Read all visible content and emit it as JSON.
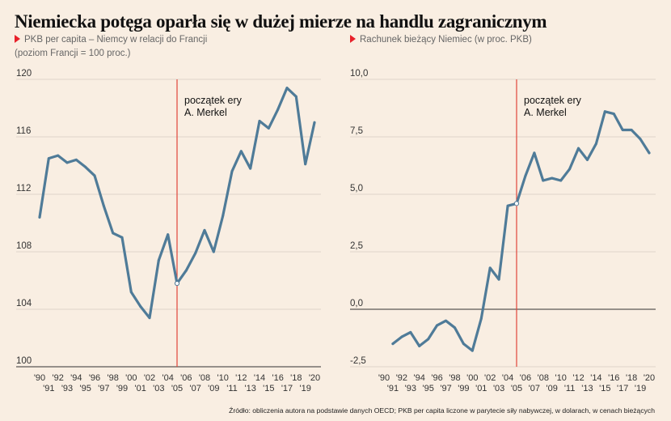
{
  "header": {
    "title": "Niemiecka potęga oparła się w dużej mierze na handlu zagranicznym",
    "left_subtitle_line1": "PKB per capita – Niemcy w relacji do Francji",
    "left_subtitle_line2": "(poziom Francji = 100 proc.)",
    "right_subtitle": "Rachunek bieżący Niemiec (w proc. PKB)"
  },
  "source": "Źródło: obliczenia autora na podstawie danych OECD; PKB per capita liczone w parytecie siły nabywczej, w dolarach, w cenach bieżących",
  "colors": {
    "line": "#4f7b98",
    "marker": "#e0453a",
    "background": "#f9eee2",
    "grid": "#d4cbc0"
  },
  "chart_data": [
    {
      "type": "line",
      "title": "PKB per capita – Niemcy w relacji do Francji",
      "x": [
        1990,
        1991,
        1992,
        1993,
        1994,
        1995,
        1996,
        1997,
        1998,
        1999,
        2000,
        2001,
        2002,
        2003,
        2004,
        2005,
        2006,
        2007,
        2008,
        2009,
        2010,
        2011,
        2012,
        2013,
        2014,
        2015,
        2016,
        2017,
        2018,
        2019,
        2020
      ],
      "values": [
        110.4,
        114.5,
        114.7,
        114.2,
        114.4,
        113.9,
        113.3,
        111.2,
        109.3,
        109.0,
        105.2,
        104.2,
        103.4,
        107.4,
        109.2,
        105.8,
        106.7,
        107.9,
        109.5,
        108.0,
        110.5,
        113.6,
        115.0,
        113.8,
        117.1,
        116.6,
        117.9,
        119.4,
        118.8,
        114.1,
        117.0
      ],
      "ylim": [
        100,
        120
      ],
      "yticks": [
        "100",
        "104",
        "108",
        "112",
        "116",
        "120"
      ],
      "ytick_values": [
        100,
        104,
        108,
        112,
        116,
        120
      ],
      "xtick_top": [
        "'90",
        "'92",
        "'94",
        "'96",
        "'98",
        "'00",
        "'02",
        "'04",
        "'06",
        "'08",
        "'10",
        "'12",
        "'14",
        "'16",
        "'18",
        "'20"
      ],
      "xtick_bottom": [
        "'91",
        "'93",
        "'95",
        "'97",
        "'99",
        "'01",
        "'03",
        "'05",
        "'07",
        "'09",
        "'11",
        "'13",
        "'15",
        "'17",
        "'19"
      ],
      "annotation": {
        "line1": "początek ery",
        "line2": "A. Merkel",
        "x": 2005
      },
      "grid": true
    },
    {
      "type": "line",
      "title": "Rachunek bieżący Niemiec (w proc. PKB)",
      "x": [
        1991,
        1992,
        1993,
        1994,
        1995,
        1996,
        1997,
        1998,
        1999,
        2000,
        2001,
        2002,
        2003,
        2004,
        2005,
        2006,
        2007,
        2008,
        2009,
        2010,
        2011,
        2012,
        2013,
        2014,
        2015,
        2016,
        2017,
        2018,
        2019,
        2020
      ],
      "values": [
        -1.5,
        -1.2,
        -1.0,
        -1.6,
        -1.3,
        -0.7,
        -0.5,
        -0.8,
        -1.5,
        -1.8,
        -0.4,
        1.8,
        1.3,
        4.5,
        4.6,
        5.8,
        6.8,
        5.6,
        5.7,
        5.6,
        6.1,
        7.0,
        6.5,
        7.2,
        8.6,
        8.5,
        7.8,
        7.8,
        7.4,
        6.8
      ],
      "ylim": [
        -2.5,
        10.0
      ],
      "yticks": [
        "-2,5",
        "0,0",
        "2,5",
        "5,0",
        "7,5",
        "10,0"
      ],
      "ytick_values": [
        -2.5,
        0,
        2.5,
        5,
        7.5,
        10
      ],
      "xtick_top": [
        "'90",
        "'92",
        "'94",
        "'96",
        "'98",
        "'00",
        "'02",
        "'04",
        "'06",
        "'08",
        "'10",
        "'12",
        "'14",
        "'16",
        "'18",
        "'20"
      ],
      "xtick_bottom": [
        "'91",
        "'93",
        "'95",
        "'97",
        "'99",
        "'01",
        "'03",
        "'05",
        "'07",
        "'09",
        "'11",
        "'13",
        "'15",
        "'17",
        "'19"
      ],
      "annotation": {
        "line1": "początek ery",
        "line2": "A. Merkel",
        "x": 2005
      },
      "grid": true
    }
  ]
}
